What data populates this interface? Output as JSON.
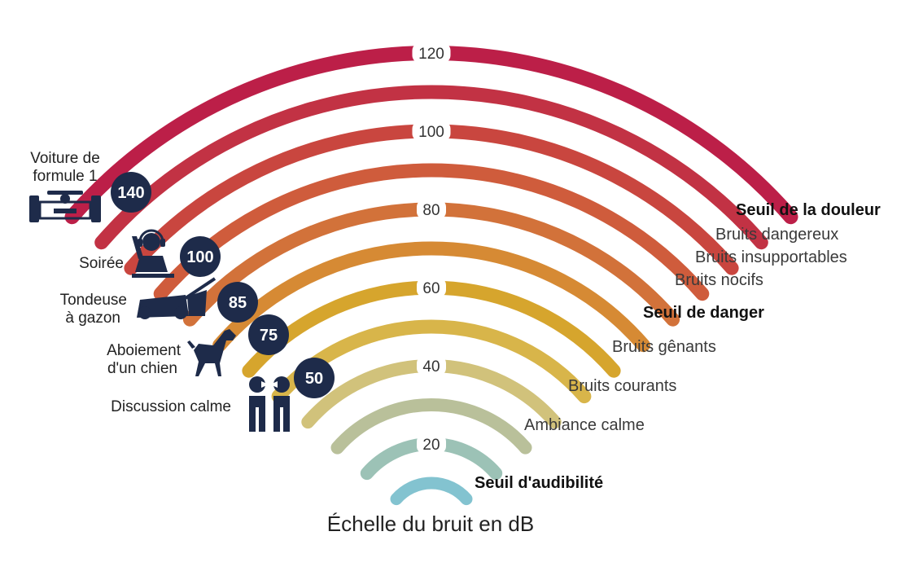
{
  "colors": {
    "arcs": [
      "#83c3d0",
      "#9cc2b6",
      "#b9c09a",
      "#d1c27b",
      "#d8b54a",
      "#d6a52d",
      "#d68a34",
      "#d2723a",
      "#cf5c3c",
      "#c9463f",
      "#c23244",
      "#bc1f48"
    ],
    "badge": "#1e2b4a",
    "icon": "#1e2b4a"
  },
  "db_marks": [
    "20",
    "40",
    "60",
    "80",
    "100",
    "120",
    "140"
  ],
  "levels": [
    {
      "label": "Seuil de la douleur",
      "strong": true
    },
    {
      "label": "Bruits dangereux",
      "strong": false
    },
    {
      "label": "Bruits insupportables",
      "strong": false
    },
    {
      "label": "Bruits nocifs",
      "strong": false
    },
    {
      "label": "Seuil de danger",
      "strong": true
    },
    {
      "label": "Bruits gênants",
      "strong": false
    },
    {
      "label": "Bruits courants",
      "strong": false
    },
    {
      "label": "Ambiance calme",
      "strong": false
    },
    {
      "label": "Seuil d'audibilité",
      "strong": true
    }
  ],
  "sources": [
    {
      "value": "140",
      "label_lines": [
        "Voiture de",
        "formule 1"
      ],
      "icon": "formula-1-car-icon"
    },
    {
      "value": "100",
      "label_lines": [
        "Soirée"
      ],
      "icon": "dj-headphones-icon"
    },
    {
      "value": "85",
      "label_lines": [
        "Tondeuse",
        "à gazon"
      ],
      "icon": "lawn-mower-icon"
    },
    {
      "value": "75",
      "label_lines": [
        "Aboiement",
        "d'un chien"
      ],
      "icon": "dog-icon"
    },
    {
      "value": "50",
      "label_lines": [
        "Discussion calme"
      ],
      "icon": "conversation-icon"
    }
  ],
  "caption": "Échelle du bruit en dB"
}
